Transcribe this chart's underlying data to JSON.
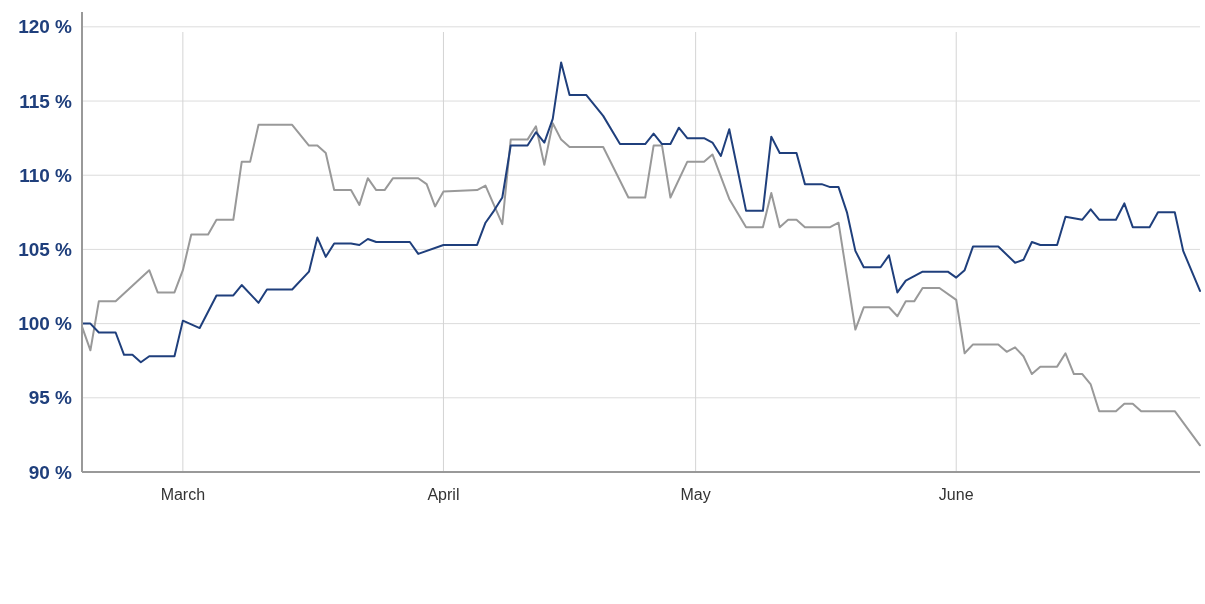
{
  "chart_data": {
    "type": "line",
    "xlim": [
      "--02-17",
      "--06-30"
    ],
    "xticks": [
      {
        "value": "--03-01",
        "label": "March"
      },
      {
        "value": "--04-01",
        "label": "April"
      },
      {
        "value": "--05-01",
        "label": "May"
      },
      {
        "value": "--06-01",
        "label": "June"
      }
    ],
    "ylim": [
      90,
      121
    ],
    "yticks": [
      {
        "value": 90,
        "label": "90 %"
      },
      {
        "value": 95,
        "label": "95 %"
      },
      {
        "value": 100,
        "label": "100 %"
      },
      {
        "value": 105,
        "label": "105 %"
      },
      {
        "value": 110,
        "label": "110 %"
      },
      {
        "value": 115,
        "label": "115 %"
      },
      {
        "value": 120,
        "label": "120 %"
      }
    ],
    "grid": true,
    "marker": "none",
    "line_style": "solid",
    "series": [
      {
        "color": "#999999",
        "x": [
          "--02-17",
          "--02-18",
          "--02-19",
          "--02-21",
          "--02-25",
          "--02-26",
          "--02-28",
          "--03-01",
          "--03-02",
          "--03-04",
          "--03-05",
          "--03-07",
          "--03-08",
          "--03-09",
          "--03-10",
          "--03-14",
          "--03-16",
          "--03-17",
          "--03-18",
          "--03-19",
          "--03-21",
          "--03-22",
          "--03-23",
          "--03-24",
          "--03-25",
          "--03-26",
          "--03-29",
          "--03-30",
          "--03-31",
          "--04-01",
          "--04-05",
          "--04-06",
          "--04-08",
          "--04-09",
          "--04-11",
          "--04-12",
          "--04-13",
          "--04-14",
          "--04-15",
          "--04-16",
          "--04-20",
          "--04-23",
          "--04-25",
          "--04-26",
          "--04-27",
          "--04-28",
          "--04-30",
          "--05-02",
          "--05-03",
          "--05-05",
          "--05-07",
          "--05-09",
          "--05-10",
          "--05-11",
          "--05-12",
          "--05-13",
          "--05-14",
          "--05-17",
          "--05-18",
          "--05-20",
          "--05-21",
          "--05-24",
          "--05-25",
          "--05-26",
          "--05-27",
          "--05-28",
          "--05-30",
          "--06-01",
          "--06-02",
          "--06-03",
          "--06-06",
          "--06-07",
          "--06-08",
          "--06-09",
          "--06-10",
          "--06-11",
          "--06-13",
          "--06-14",
          "--06-15",
          "--06-16",
          "--06-17",
          "--06-18",
          "--06-20",
          "--06-21",
          "--06-22",
          "--06-23",
          "--06-27",
          "--06-30"
        ],
        "values": [
          99.8,
          98.2,
          101.5,
          101.5,
          103.6,
          102.1,
          102.1,
          103.6,
          106.0,
          106.0,
          107.0,
          107.0,
          110.9,
          110.9,
          113.4,
          113.4,
          112.0,
          112.0,
          111.5,
          109.0,
          109.0,
          108.0,
          109.8,
          109.0,
          109.0,
          109.8,
          109.8,
          109.4,
          107.9,
          108.9,
          109.0,
          109.3,
          106.7,
          112.4,
          112.4,
          113.3,
          110.7,
          113.5,
          112.4,
          111.9,
          111.9,
          108.5,
          108.5,
          112.0,
          112.0,
          108.5,
          110.9,
          110.9,
          111.4,
          108.4,
          106.5,
          106.5,
          108.8,
          106.5,
          107.0,
          107.0,
          106.5,
          106.5,
          106.8,
          99.6,
          101.1,
          101.1,
          100.5,
          101.5,
          101.5,
          102.4,
          102.4,
          101.6,
          98.0,
          98.6,
          98.6,
          98.1,
          98.4,
          97.8,
          96.6,
          97.1,
          97.1,
          98.0,
          96.6,
          96.6,
          95.9,
          94.1,
          94.1,
          94.6,
          94.6,
          94.1,
          94.1,
          91.8
        ]
      },
      {
        "color": "#1f3f7c",
        "x": [
          "--02-17",
          "--02-18",
          "--02-19",
          "--02-21",
          "--02-22",
          "--02-23",
          "--02-24",
          "--02-25",
          "--02-28",
          "--03-01",
          "--03-03",
          "--03-05",
          "--03-07",
          "--03-08",
          "--03-10",
          "--03-11",
          "--03-14",
          "--03-16",
          "--03-17",
          "--03-18",
          "--03-19",
          "--03-21",
          "--03-22",
          "--03-23",
          "--03-24",
          "--03-28",
          "--03-29",
          "--04-01",
          "--04-05",
          "--04-06",
          "--04-07",
          "--04-08",
          "--04-09",
          "--04-11",
          "--04-12",
          "--04-13",
          "--04-14",
          "--04-15",
          "--04-16",
          "--04-18",
          "--04-20",
          "--04-22",
          "--04-25",
          "--04-26",
          "--04-27",
          "--04-28",
          "--04-29",
          "--04-30",
          "--05-02",
          "--05-03",
          "--05-04",
          "--05-05",
          "--05-07",
          "--05-09",
          "--05-10",
          "--05-11",
          "--05-13",
          "--05-14",
          "--05-16",
          "--05-17",
          "--05-18",
          "--05-19",
          "--05-20",
          "--05-21",
          "--05-23",
          "--05-24",
          "--05-25",
          "--05-26",
          "--05-28",
          "--05-31",
          "--06-01",
          "--06-02",
          "--06-03",
          "--06-06",
          "--06-08",
          "--06-09",
          "--06-10",
          "--06-11",
          "--06-13",
          "--06-14",
          "--06-16",
          "--06-17",
          "--06-18",
          "--06-20",
          "--06-21",
          "--06-22",
          "--06-24",
          "--06-25",
          "--06-27",
          "--06-28",
          "--06-30"
        ],
        "values": [
          100.0,
          100.0,
          99.4,
          99.4,
          97.9,
          97.9,
          97.4,
          97.8,
          97.8,
          100.2,
          99.7,
          101.9,
          101.9,
          102.6,
          101.4,
          102.3,
          102.3,
          103.5,
          105.8,
          104.5,
          105.4,
          105.4,
          105.3,
          105.7,
          105.5,
          105.5,
          104.7,
          105.3,
          105.3,
          106.8,
          107.6,
          108.5,
          112.0,
          112.0,
          112.9,
          112.2,
          113.8,
          117.6,
          115.4,
          115.4,
          114.0,
          112.1,
          112.1,
          112.8,
          112.1,
          112.1,
          113.2,
          112.5,
          112.5,
          112.2,
          111.3,
          113.1,
          107.6,
          107.6,
          112.6,
          111.5,
          111.5,
          109.4,
          109.4,
          109.2,
          109.2,
          107.5,
          104.9,
          103.8,
          103.8,
          104.6,
          102.1,
          102.9,
          103.5,
          103.5,
          103.1,
          103.6,
          105.2,
          105.2,
          104.1,
          104.3,
          105.5,
          105.3,
          105.3,
          107.2,
          107.0,
          107.7,
          107.0,
          107.0,
          108.1,
          106.5,
          106.5,
          107.5,
          107.5,
          104.9,
          102.2
        ]
      }
    ]
  }
}
